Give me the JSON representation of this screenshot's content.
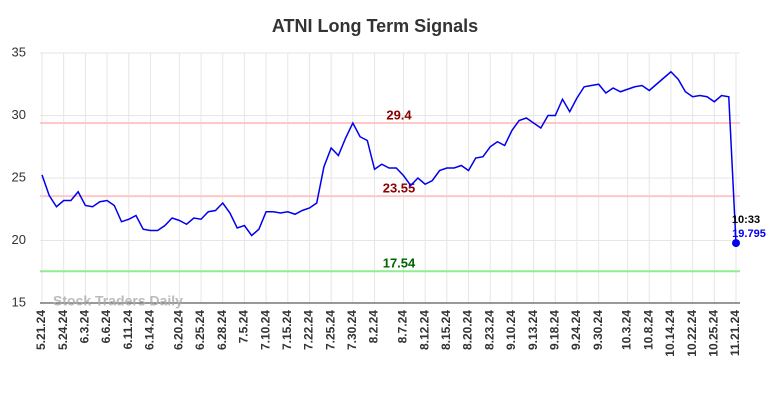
{
  "chart_data": {
    "type": "line",
    "title": "ATNI Long Term Signals",
    "categories": [
      "5.21.24",
      null,
      null,
      "5.24.24",
      null,
      null,
      "6.3.24",
      null,
      null,
      "6.6.24",
      null,
      null,
      "6.11.24",
      null,
      null,
      "6.14.24",
      null,
      null,
      null,
      "6.20.24",
      null,
      null,
      "6.25.24",
      null,
      null,
      "6.28.24",
      null,
      null,
      "7.5.24",
      null,
      null,
      "7.10.24",
      null,
      null,
      "7.15.24",
      null,
      null,
      "7.22.24",
      null,
      null,
      "7.25.24",
      null,
      null,
      "7.30.24",
      null,
      null,
      "8.2.24",
      null,
      null,
      null,
      "8.7.24",
      null,
      null,
      "8.12.24",
      null,
      null,
      "8.15.24",
      null,
      null,
      "8.20.24",
      null,
      null,
      "8.23.24",
      null,
      null,
      "9.10.24",
      null,
      null,
      "9.13.24",
      null,
      null,
      "9.18.24",
      null,
      null,
      "9.24.24",
      null,
      null,
      "9.30.24",
      null,
      null,
      null,
      "10.3.24",
      null,
      null,
      "10.8.24",
      null,
      null,
      "10.14.24",
      null,
      null,
      "10.22.24",
      null,
      null,
      "10.25.24",
      null,
      null,
      "11.21.24"
    ],
    "series": [
      {
        "color": "#0000ee",
        "values": [
          25.25,
          23.6,
          22.7,
          23.2,
          23.2,
          23.9,
          22.8,
          22.7,
          23.1,
          23.2,
          22.8,
          21.5,
          21.7,
          22.0,
          20.9,
          20.8,
          20.8,
          21.2,
          21.8,
          21.6,
          21.3,
          21.8,
          21.7,
          22.3,
          22.4,
          23.0,
          22.2,
          21.0,
          21.2,
          20.4,
          20.9,
          22.3,
          22.3,
          22.2,
          22.3,
          22.1,
          22.4,
          22.6,
          23.0,
          25.9,
          27.4,
          26.8,
          28.2,
          29.4,
          28.3,
          28.0,
          25.7,
          26.1,
          25.8,
          25.8,
          25.2,
          24.4,
          25.0,
          24.5,
          24.8,
          25.6,
          25.8,
          25.8,
          26.0,
          25.6,
          26.6,
          26.7,
          27.5,
          27.9,
          27.6,
          28.8,
          29.6,
          29.8,
          29.4,
          29.0,
          30.0,
          30.0,
          31.3,
          30.3,
          31.4,
          32.3,
          32.4,
          32.5,
          31.8,
          32.2,
          31.9,
          32.1,
          32.3,
          32.4,
          32.0,
          32.5,
          33.0,
          33.5,
          32.9,
          31.9,
          31.5,
          31.6,
          31.5,
          31.1,
          31.6,
          31.5,
          19.795
        ]
      }
    ],
    "levels": [
      {
        "value": 29.4,
        "color": "#ffc8c8",
        "label_color": "#8b0000"
      },
      {
        "value": 23.55,
        "color": "#ffc8c8",
        "label_color": "#8b0000"
      },
      {
        "value": 17.54,
        "color": "#90ee90",
        "label_color": "#006400"
      }
    ],
    "last_time": "10:33",
    "watermark": "Stock Traders Daily",
    "ylim": [
      15,
      35
    ],
    "yticks": [
      15,
      20,
      25,
      30,
      35
    ],
    "grid": true
  }
}
